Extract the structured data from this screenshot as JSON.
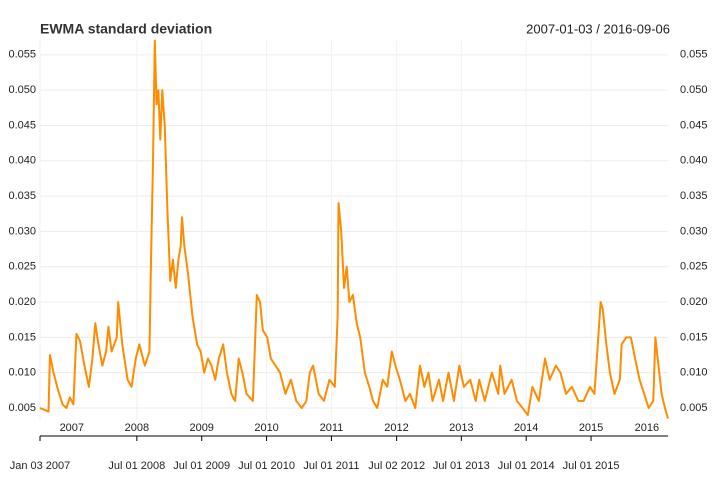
{
  "chart_data": {
    "type": "line",
    "title": "EWMA standard deviation",
    "date_range": "2007-01-03 / 2016-09-06",
    "color": "#ff8c00",
    "grid": true,
    "xlim": [
      "2007-01-03",
      "2016-09-06"
    ],
    "ylim": [
      0.0033,
      0.0571
    ],
    "yticks": [
      0.005,
      {
        "value": 0.01,
        "label": "0.010"
      },
      0.015,
      {
        "value": 0.02,
        "label": "0.020"
      },
      0.025,
      {
        "value": 0.03,
        "label": "0.030"
      },
      0.035,
      {
        "value": 0.04,
        "label": "0.040"
      },
      0.045,
      {
        "value": 0.05,
        "label": "0.050"
      },
      0.055
    ],
    "xticks": [
      {
        "value": "2007-01-03",
        "label": "Jan 03 2007"
      },
      {
        "value": "2008-07-01",
        "label": "Jul 01 2008"
      },
      {
        "value": "2009-07-01",
        "label": "Jul 01 2009"
      },
      {
        "value": "2010-07-01",
        "label": "Jul 01 2010"
      },
      {
        "value": "2011-07-01",
        "label": "Jul 01 2011"
      },
      {
        "value": "2012-07-02",
        "label": "Jul 02 2012"
      },
      {
        "value": "2013-07-01",
        "label": "Jul 01 2013"
      },
      {
        "value": "2014-07-01",
        "label": "Jul 01 2014"
      },
      {
        "value": "2015-07-01",
        "label": "Jul 01 2015"
      }
    ],
    "year_labels": [
      {
        "value": "2007-07-01",
        "label": "2007"
      },
      {
        "value": "2008-07-01",
        "label": "2008"
      },
      {
        "value": "2009-07-01",
        "label": "2009"
      },
      {
        "value": "2010-07-01",
        "label": "2010"
      },
      {
        "value": "2011-07-01",
        "label": "2011"
      },
      {
        "value": "2012-07-01",
        "label": "2012"
      },
      {
        "value": "2013-07-01",
        "label": "2013"
      },
      {
        "value": "2014-07-01",
        "label": "2014"
      },
      {
        "value": "2015-07-01",
        "label": "2015"
      },
      {
        "value": "2016-05-10",
        "label": "2016"
      }
    ],
    "x": [
      "2007-01-03",
      "2007-02-20",
      "2007-02-28",
      "2007-03-20",
      "2007-04-15",
      "2007-05-10",
      "2007-06-01",
      "2007-06-20",
      "2007-07-10",
      "2007-07-27",
      "2007-08-16",
      "2007-09-10",
      "2007-10-05",
      "2007-10-25",
      "2007-11-10",
      "2007-11-28",
      "2007-12-20",
      "2008-01-10",
      "2008-01-23",
      "2008-02-10",
      "2008-03-10",
      "2008-03-18",
      "2008-04-10",
      "2008-05-10",
      "2008-06-01",
      "2008-06-25",
      "2008-07-15",
      "2008-08-15",
      "2008-09-10",
      "2008-09-18",
      "2008-09-30",
      "2008-10-10",
      "2008-10-20",
      "2008-10-30",
      "2008-11-10",
      "2008-11-21",
      "2008-12-05",
      "2008-12-20",
      "2009-01-05",
      "2009-01-20",
      "2009-02-05",
      "2009-02-20",
      "2009-03-05",
      "2009-03-12",
      "2009-03-25",
      "2009-04-15",
      "2009-05-10",
      "2009-06-05",
      "2009-06-25",
      "2009-07-15",
      "2009-08-05",
      "2009-08-25",
      "2009-09-15",
      "2009-10-05",
      "2009-10-30",
      "2009-11-20",
      "2009-12-15",
      "2010-01-05",
      "2010-01-25",
      "2010-02-15",
      "2010-03-10",
      "2010-04-15",
      "2010-05-07",
      "2010-05-25",
      "2010-06-10",
      "2010-07-05",
      "2010-07-25",
      "2010-08-20",
      "2010-09-15",
      "2010-10-15",
      "2010-11-15",
      "2010-12-15",
      "2011-01-15",
      "2011-02-10",
      "2011-03-01",
      "2011-03-20",
      "2011-04-20",
      "2011-05-20",
      "2011-06-20",
      "2011-07-20",
      "2011-08-05",
      "2011-08-10",
      "2011-08-25",
      "2011-09-10",
      "2011-09-25",
      "2011-10-10",
      "2011-10-30",
      "2011-11-20",
      "2011-12-10",
      "2012-01-05",
      "2012-01-30",
      "2012-02-20",
      "2012-03-15",
      "2012-04-15",
      "2012-05-10",
      "2012-06-05",
      "2012-06-25",
      "2012-07-20",
      "2012-08-20",
      "2012-09-15",
      "2012-10-15",
      "2012-11-10",
      "2012-12-05",
      "2012-12-28",
      "2013-01-20",
      "2013-02-25",
      "2013-03-20",
      "2013-04-20",
      "2013-05-20",
      "2013-06-20",
      "2013-07-15",
      "2013-08-20",
      "2013-09-20",
      "2013-10-10",
      "2013-11-10",
      "2013-12-20",
      "2014-01-25",
      "2014-02-05",
      "2014-03-01",
      "2014-04-10",
      "2014-05-10",
      "2014-06-10",
      "2014-07-10",
      "2014-08-05",
      "2014-09-10",
      "2014-10-15",
      "2014-11-10",
      "2014-12-15",
      "2015-01-10",
      "2015-02-10",
      "2015-03-15",
      "2015-04-20",
      "2015-05-20",
      "2015-06-25",
      "2015-07-20",
      "2015-08-24",
      "2015-09-05",
      "2015-09-25",
      "2015-10-15",
      "2015-11-10",
      "2015-12-10",
      "2015-12-20",
      "2016-01-15",
      "2016-02-10",
      "2016-03-05",
      "2016-03-30",
      "2016-04-25",
      "2016-05-20",
      "2016-06-15",
      "2016-06-27",
      "2016-07-10",
      "2016-08-01",
      "2016-08-20",
      "2016-09-06"
    ],
    "values": [
      0.005,
      0.0045,
      0.0125,
      0.01,
      0.0075,
      0.0055,
      0.005,
      0.0065,
      0.0055,
      0.0155,
      0.0145,
      0.011,
      0.008,
      0.012,
      0.017,
      0.014,
      0.011,
      0.013,
      0.0165,
      0.013,
      0.015,
      0.02,
      0.014,
      0.009,
      0.008,
      0.012,
      0.014,
      0.011,
      0.013,
      0.025,
      0.04,
      0.057,
      0.048,
      0.05,
      0.043,
      0.05,
      0.045,
      0.033,
      0.023,
      0.026,
      0.022,
      0.026,
      0.028,
      0.032,
      0.028,
      0.024,
      0.018,
      0.014,
      0.013,
      0.01,
      0.012,
      0.011,
      0.009,
      0.012,
      0.014,
      0.01,
      0.007,
      0.006,
      0.012,
      0.01,
      0.007,
      0.006,
      0.021,
      0.02,
      0.016,
      0.015,
      0.012,
      0.011,
      0.01,
      0.007,
      0.009,
      0.006,
      0.005,
      0.006,
      0.01,
      0.011,
      0.007,
      0.006,
      0.009,
      0.008,
      0.018,
      0.034,
      0.03,
      0.022,
      0.025,
      0.02,
      0.021,
      0.017,
      0.015,
      0.01,
      0.008,
      0.006,
      0.005,
      0.009,
      0.008,
      0.013,
      0.011,
      0.009,
      0.006,
      0.007,
      0.005,
      0.011,
      0.008,
      0.01,
      0.006,
      0.009,
      0.006,
      0.01,
      0.006,
      0.011,
      0.008,
      0.009,
      0.006,
      0.009,
      0.006,
      0.01,
      0.007,
      0.011,
      0.007,
      0.009,
      0.006,
      0.005,
      0.004,
      0.008,
      0.006,
      0.012,
      0.009,
      0.011,
      0.01,
      0.007,
      0.008,
      0.006,
      0.006,
      0.008,
      0.007,
      0.02,
      0.019,
      0.014,
      0.01,
      0.007,
      0.009,
      0.014,
      0.015,
      0.015,
      0.012,
      0.009,
      0.007,
      0.005,
      0.006,
      0.015,
      0.012,
      0.007,
      0.005,
      0.0035
    ]
  }
}
